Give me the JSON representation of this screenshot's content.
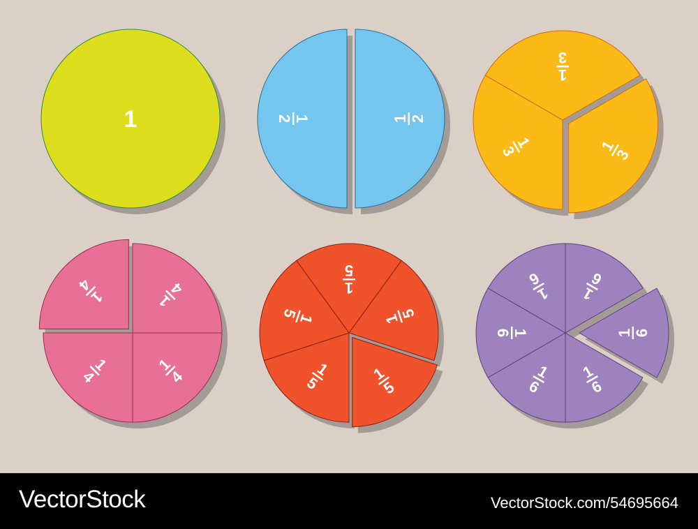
{
  "circles": [
    {
      "name": "whole",
      "denominator": 1,
      "label": "1",
      "fill": "#DEDE1F",
      "stroke": "#2E8B3A"
    },
    {
      "name": "halves",
      "denominator": 2,
      "numerator_label": "1",
      "denominator_label": "2",
      "fill": "#74C6EE",
      "stroke": "#2B6E99"
    },
    {
      "name": "thirds",
      "denominator": 3,
      "numerator_label": "1",
      "denominator_label": "3",
      "fill": "#FBBA16",
      "stroke": "#D3661E"
    },
    {
      "name": "quarters",
      "denominator": 4,
      "numerator_label": "1",
      "denominator_label": "4",
      "fill": "#E86F96",
      "stroke": "#9C2B4E"
    },
    {
      "name": "fifths",
      "denominator": 5,
      "numerator_label": "1",
      "denominator_label": "5",
      "fill": "#F0522B",
      "stroke": "#8A1F14"
    },
    {
      "name": "sixths",
      "denominator": 6,
      "numerator_label": "1",
      "denominator_label": "6",
      "fill": "#9D82BE",
      "stroke": "#5A3F85"
    }
  ],
  "shadow_color": "#A39C96",
  "background": "#DBD0C5",
  "footer": {
    "brand": "VectorStock",
    "reference": "VectorStock.com/54695664"
  }
}
